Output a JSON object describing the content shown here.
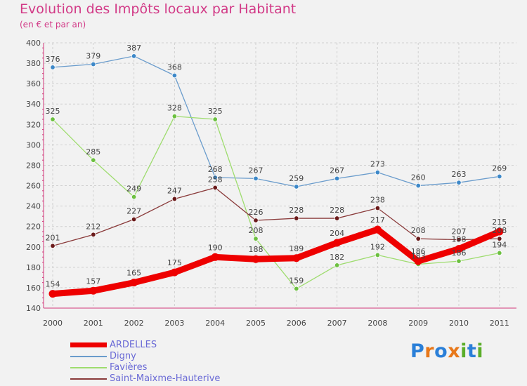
{
  "header": {
    "title": "Evolution des Impôts locaux par Habitant",
    "subtitle": "(en € et par an)"
  },
  "logo": {
    "letters": [
      "P",
      "r",
      "o",
      "x",
      "i",
      "t",
      "i"
    ],
    "colors": [
      "#2a7fd8",
      "#e8781a",
      "#2a7fd8",
      "#e8781a",
      "#5cae2a",
      "#2a7fd8",
      "#5cae2a"
    ]
  },
  "chart_data": {
    "type": "line",
    "title": "Evolution des Impôts locaux par Habitant",
    "subtitle": "(en € et par an)",
    "xlabel": "",
    "ylabel": "",
    "categories": [
      "2000",
      "2001",
      "2002",
      "2003",
      "2004",
      "2005",
      "2006",
      "2007",
      "2008",
      "2009",
      "2010",
      "2011"
    ],
    "ylim": [
      140,
      400
    ],
    "yticks": [
      140,
      160,
      180,
      200,
      220,
      240,
      260,
      280,
      300,
      320,
      340,
      360,
      380,
      400
    ],
    "grid": true,
    "legend_position": "bottom-left",
    "series": [
      {
        "name": "ARDELLES",
        "color": "#ee0000",
        "highlight": true,
        "values": [
          154,
          157,
          165,
          175,
          190,
          188,
          189,
          204,
          217,
          186,
          198,
          215
        ]
      },
      {
        "name": "Digny",
        "color": "#6a9ccc",
        "marker": "#3d88c8",
        "highlight": false,
        "values": [
          376,
          379,
          387,
          368,
          268,
          267,
          259,
          267,
          273,
          260,
          263,
          269
        ]
      },
      {
        "name": "Favières",
        "color": "#9edc6e",
        "marker": "#6cc040",
        "highlight": false,
        "values": [
          325,
          285,
          249,
          328,
          325,
          208,
          159,
          182,
          192,
          183,
          186,
          194
        ]
      },
      {
        "name": "Saint-Maixme-Hauterive",
        "color": "#8a3a3a",
        "marker": "#6a1a1a",
        "highlight": false,
        "values": [
          201,
          212,
          227,
          247,
          258,
          226,
          228,
          228,
          238,
          208,
          207,
          208
        ]
      }
    ]
  }
}
